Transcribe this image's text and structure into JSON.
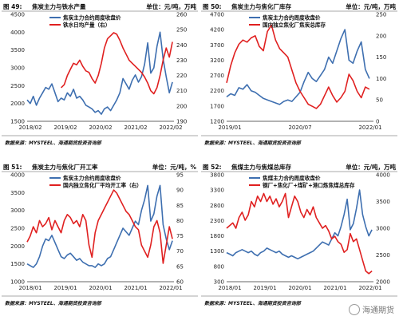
{
  "chart_data": [
    {
      "type": "line",
      "panel": "top-left",
      "title_num": "图 49:",
      "title": "焦炭主力与铁水产量",
      "unit": "单位：元/吨，万吨",
      "source": "数据来源：MYSTEEL、海通期货投资咨询部",
      "x_ticks": [
        "2018/02",
        "2019/02",
        "2020/02",
        "2021/02",
        "2022/02"
      ],
      "xlim": [
        2018.0,
        2022.75
      ],
      "ylim_left": [
        1500,
        4500
      ],
      "yticks_left": [
        1500,
        2000,
        2500,
        3000,
        3500,
        4000,
        4500
      ],
      "ylim_right": [
        190,
        260
      ],
      "yticks_right": [
        190,
        200,
        210,
        220,
        230,
        240,
        250,
        260
      ],
      "legend_position": "top",
      "series": [
        {
          "name": "焦炭主力合约周度收盘价",
          "color": "#3e6fb0",
          "axis": "left",
          "x": [
            2018.0,
            2018.1,
            2018.2,
            2018.3,
            2018.4,
            2018.5,
            2018.6,
            2018.7,
            2018.8,
            2018.9,
            2019.0,
            2019.1,
            2019.2,
            2019.3,
            2019.4,
            2019.5,
            2019.6,
            2019.7,
            2019.8,
            2019.9,
            2020.0,
            2020.1,
            2020.2,
            2020.3,
            2020.4,
            2020.5,
            2020.6,
            2020.7,
            2020.8,
            2020.9,
            2021.0,
            2021.1,
            2021.2,
            2021.3,
            2021.4,
            2021.5,
            2021.6,
            2021.7,
            2021.8,
            2021.9,
            2022.0,
            2022.1,
            2022.2,
            2022.3,
            2022.4,
            2022.5,
            2022.6,
            2022.7
          ],
          "y": [
            2100,
            2000,
            2200,
            1950,
            2150,
            2300,
            2450,
            2400,
            2550,
            2300,
            2050,
            2150,
            2100,
            2300,
            2200,
            2400,
            2150,
            2200,
            2100,
            1950,
            1900,
            1850,
            1750,
            1800,
            1700,
            1850,
            1900,
            1800,
            1950,
            2100,
            2300,
            2700,
            2550,
            2400,
            2650,
            2800,
            2600,
            2750,
            3100,
            3700,
            2850,
            3000,
            3600,
            4000,
            3250,
            2750,
            2300,
            2600
          ]
        },
        {
          "name": "铁水日均产量（右）",
          "color": "#e02020",
          "axis": "right",
          "x": [
            2019.1,
            2019.2,
            2019.3,
            2019.4,
            2019.5,
            2019.6,
            2019.7,
            2019.8,
            2019.9,
            2020.0,
            2020.1,
            2020.2,
            2020.3,
            2020.4,
            2020.5,
            2020.6,
            2020.7,
            2020.8,
            2020.9,
            2021.0,
            2021.1,
            2021.2,
            2021.3,
            2021.4,
            2021.5,
            2021.6,
            2021.7,
            2021.8,
            2021.9,
            2022.0,
            2022.1,
            2022.2,
            2022.3,
            2022.4,
            2022.5,
            2022.6,
            2022.7
          ],
          "y": [
            212,
            214,
            220,
            224,
            228,
            227,
            230,
            226,
            223,
            222,
            218,
            215,
            220,
            228,
            238,
            244,
            246,
            248,
            247,
            243,
            238,
            234,
            230,
            228,
            226,
            224,
            222,
            219,
            215,
            210,
            208,
            212,
            220,
            230,
            238,
            232,
            242
          ]
        }
      ]
    },
    {
      "type": "line",
      "panel": "top-right",
      "title_num": "图 50:",
      "title": "焦炭主力与焦化厂库存",
      "unit": "单位：元/吨，万吨",
      "source": "数据来源：MYSTEEL、海通期货投资咨询部",
      "x_ticks": [
        "2019/01",
        "2020/07",
        "2022/01"
      ],
      "xlim": [
        2019.0,
        2022.6
      ],
      "ylim_left": [
        1200,
        4700
      ],
      "yticks_left": [
        1200,
        1700,
        2200,
        2700,
        3200,
        3700,
        4200,
        4700
      ],
      "ylim_right": [
        0,
        250
      ],
      "yticks_right": [
        0,
        50,
        100,
        150,
        200,
        250
      ],
      "legend_position": "top",
      "series": [
        {
          "name": "焦炭主力合约周度收盘价",
          "color": "#3e6fb0",
          "axis": "left",
          "x": [
            2019.0,
            2019.1,
            2019.2,
            2019.3,
            2019.4,
            2019.5,
            2019.6,
            2019.7,
            2019.8,
            2019.9,
            2020.0,
            2020.1,
            2020.2,
            2020.3,
            2020.4,
            2020.5,
            2020.6,
            2020.7,
            2020.8,
            2020.9,
            2021.0,
            2021.1,
            2021.2,
            2021.3,
            2021.4,
            2021.5,
            2021.6,
            2021.7,
            2021.8,
            2021.9,
            2022.0,
            2022.1,
            2022.2,
            2022.3,
            2022.4,
            2022.5
          ],
          "y": [
            2000,
            2100,
            2050,
            2300,
            2250,
            2400,
            2200,
            2150,
            2050,
            1950,
            1900,
            1850,
            1800,
            1750,
            1850,
            1900,
            1850,
            2000,
            2150,
            2500,
            2800,
            2600,
            2500,
            2700,
            2900,
            3300,
            3100,
            3500,
            3900,
            4200,
            3200,
            3100,
            3500,
            3800,
            2900,
            2600
          ]
        },
        {
          "name": "国内独立焦化厂焦炭总库存",
          "color": "#e02020",
          "axis": "right",
          "x": [
            2019.0,
            2019.1,
            2019.2,
            2019.3,
            2019.4,
            2019.5,
            2019.6,
            2019.7,
            2019.8,
            2019.9,
            2020.0,
            2020.1,
            2020.2,
            2020.3,
            2020.4,
            2020.5,
            2020.6,
            2020.7,
            2020.8,
            2020.9,
            2021.0,
            2021.1,
            2021.2,
            2021.3,
            2021.4,
            2021.5,
            2021.6,
            2021.7,
            2021.8,
            2021.9,
            2022.0,
            2022.1,
            2022.2,
            2022.3,
            2022.4,
            2022.5
          ],
          "y": [
            90,
            130,
            160,
            180,
            190,
            185,
            195,
            200,
            175,
            165,
            210,
            225,
            190,
            170,
            160,
            150,
            120,
            90,
            70,
            55,
            40,
            35,
            30,
            40,
            60,
            80,
            60,
            45,
            55,
            70,
            110,
            95,
            70,
            55,
            80,
            75
          ]
        }
      ]
    },
    {
      "type": "line",
      "panel": "bottom-left",
      "title_num": "图 51:",
      "title": "焦炭主力与焦化厂开工率",
      "unit": "单位：元/吨，%",
      "source": "数据来源：MYSTEEL、海通期货投资咨询部",
      "x_ticks": [
        "2018/01",
        "2019/01",
        "2020/01",
        "2021/01",
        "2022/01"
      ],
      "xlim": [
        2018.0,
        2022.75
      ],
      "ylim_left": [
        1000,
        4000
      ],
      "yticks_left": [
        1000,
        1500,
        2000,
        2500,
        3000,
        3500,
        4000
      ],
      "ylim_right": [
        60,
        95
      ],
      "yticks_right": [
        60,
        65,
        70,
        75,
        80,
        85,
        90,
        95
      ],
      "legend_position": "top",
      "series": [
        {
          "name": "焦炭主力合约周度收盘价",
          "color": "#3e6fb0",
          "axis": "left",
          "x": [
            2018.0,
            2018.1,
            2018.2,
            2018.3,
            2018.4,
            2018.5,
            2018.6,
            2018.7,
            2018.8,
            2018.9,
            2019.0,
            2019.1,
            2019.2,
            2019.3,
            2019.4,
            2019.5,
            2019.6,
            2019.7,
            2019.8,
            2019.9,
            2020.0,
            2020.1,
            2020.2,
            2020.3,
            2020.4,
            2020.5,
            2020.6,
            2020.7,
            2020.8,
            2020.9,
            2021.0,
            2021.1,
            2021.2,
            2021.3,
            2021.4,
            2021.5,
            2021.6,
            2021.7,
            2021.8,
            2021.9,
            2022.0,
            2022.1,
            2022.2,
            2022.3,
            2022.4,
            2022.5,
            2022.6,
            2022.7
          ],
          "y": [
            1500,
            1450,
            1400,
            1500,
            1700,
            2000,
            2200,
            2150,
            2300,
            2100,
            1900,
            1700,
            1650,
            1750,
            1800,
            1700,
            1600,
            1650,
            1550,
            1500,
            1450,
            1450,
            1400,
            1500,
            1450,
            1500,
            1650,
            1700,
            1900,
            2100,
            2300,
            2500,
            2400,
            2300,
            2500,
            2700,
            2600,
            3000,
            3300,
            3700,
            2700,
            2900,
            3400,
            3700,
            2600,
            2200,
            1900,
            2150
          ]
        },
        {
          "name": "国内独立焦化厂平均开工率（右）",
          "color": "#e02020",
          "axis": "right",
          "x": [
            2018.0,
            2018.1,
            2018.2,
            2018.3,
            2018.4,
            2018.5,
            2018.6,
            2018.7,
            2018.8,
            2018.9,
            2019.0,
            2019.1,
            2019.2,
            2019.3,
            2019.4,
            2019.5,
            2019.6,
            2019.7,
            2019.8,
            2019.9,
            2020.0,
            2020.1,
            2020.2,
            2020.3,
            2020.4,
            2020.5,
            2020.6,
            2020.7,
            2020.8,
            2020.9,
            2021.0,
            2021.1,
            2021.2,
            2021.3,
            2021.4,
            2021.5,
            2021.6,
            2021.7,
            2021.8,
            2021.9,
            2022.0,
            2022.1,
            2022.2,
            2022.3,
            2022.4,
            2022.5,
            2022.6,
            2022.7
          ],
          "y": [
            73,
            75,
            78,
            76,
            80,
            78,
            79,
            81,
            77,
            80,
            78,
            76,
            80,
            82,
            81,
            79,
            80,
            78,
            82,
            80,
            72,
            68,
            76,
            80,
            82,
            84,
            86,
            88,
            90,
            89,
            87,
            85,
            83,
            82,
            80,
            78,
            77,
            72,
            70,
            68,
            72,
            78,
            80,
            76,
            66,
            72,
            78,
            74
          ]
        }
      ]
    },
    {
      "type": "line",
      "panel": "bottom-right",
      "title_num": "图 52:",
      "title": "焦煤主力与焦煤总库存",
      "unit": "单位：元/吨，万吨",
      "source": "数据来源：MYSTEEL、海通期货投资咨询部",
      "x_ticks": [
        "2018/01",
        "2019/01",
        "2020/01",
        "2021/01",
        "2022/01"
      ],
      "xlim": [
        2018.0,
        2022.75
      ],
      "ylim_left": [
        300,
        3800
      ],
      "yticks_left": [
        300,
        800,
        1300,
        1800,
        2300,
        2800,
        3300,
        3800
      ],
      "ylim_right": [
        2000,
        4000
      ],
      "yticks_right": [
        2000,
        2500,
        3000,
        3500,
        4000
      ],
      "legend_position": "top",
      "series": [
        {
          "name": "焦煤主力合约周度收盘价",
          "color": "#3e6fb0",
          "axis": "left",
          "x": [
            2018.0,
            2018.1,
            2018.2,
            2018.3,
            2018.4,
            2018.5,
            2018.6,
            2018.7,
            2018.8,
            2018.9,
            2019.0,
            2019.1,
            2019.2,
            2019.3,
            2019.4,
            2019.5,
            2019.6,
            2019.7,
            2019.8,
            2019.9,
            2020.0,
            2020.1,
            2020.2,
            2020.3,
            2020.4,
            2020.5,
            2020.6,
            2020.7,
            2020.8,
            2020.9,
            2021.0,
            2021.1,
            2021.2,
            2021.3,
            2021.4,
            2021.5,
            2021.6,
            2021.7,
            2021.8,
            2021.9,
            2022.0,
            2022.1,
            2022.2,
            2022.3,
            2022.4,
            2022.5,
            2022.6,
            2022.7
          ],
          "y": [
            1250,
            1200,
            1150,
            1250,
            1300,
            1350,
            1300,
            1250,
            1300,
            1200,
            1150,
            1250,
            1300,
            1400,
            1350,
            1300,
            1250,
            1300,
            1200,
            1150,
            1100,
            1150,
            1100,
            1050,
            1100,
            1150,
            1200,
            1250,
            1300,
            1400,
            1500,
            1600,
            1550,
            1500,
            1700,
            1900,
            1800,
            2100,
            2500,
            3000,
            2000,
            2200,
            2700,
            3300,
            2500,
            2100,
            1800,
            2000
          ]
        },
        {
          "name": "钢厂+焦化厂+煤矿+港口炼焦煤总库存",
          "color": "#e02020",
          "axis": "right",
          "x": [
            2018.0,
            2018.1,
            2018.2,
            2018.3,
            2018.4,
            2018.5,
            2018.6,
            2018.7,
            2018.8,
            2018.9,
            2019.0,
            2019.1,
            2019.2,
            2019.3,
            2019.4,
            2019.5,
            2019.6,
            2019.7,
            2019.8,
            2019.9,
            2020.0,
            2020.1,
            2020.2,
            2020.3,
            2020.4,
            2020.5,
            2020.6,
            2020.7,
            2020.8,
            2020.9,
            2021.0,
            2021.1,
            2021.2,
            2021.3,
            2021.4,
            2021.5,
            2021.6,
            2021.7,
            2021.8,
            2021.9,
            2022.0,
            2022.1,
            2022.2,
            2022.3,
            2022.4,
            2022.5,
            2022.6,
            2022.7
          ],
          "y": [
            3000,
            3050,
            3100,
            3000,
            3200,
            3300,
            3150,
            3250,
            3500,
            3400,
            3600,
            3500,
            3650,
            3500,
            3600,
            3450,
            3550,
            3400,
            3500,
            3650,
            3200,
            3400,
            3600,
            3500,
            3300,
            3200,
            3350,
            3250,
            3400,
            3200,
            3100,
            3000,
            3050,
            2950,
            2800,
            2850,
            2750,
            2700,
            2550,
            2600,
            2900,
            2750,
            2800,
            2600,
            2400,
            2200,
            2150,
            2200
          ]
        }
      ]
    }
  ],
  "watermark": "海通期货"
}
